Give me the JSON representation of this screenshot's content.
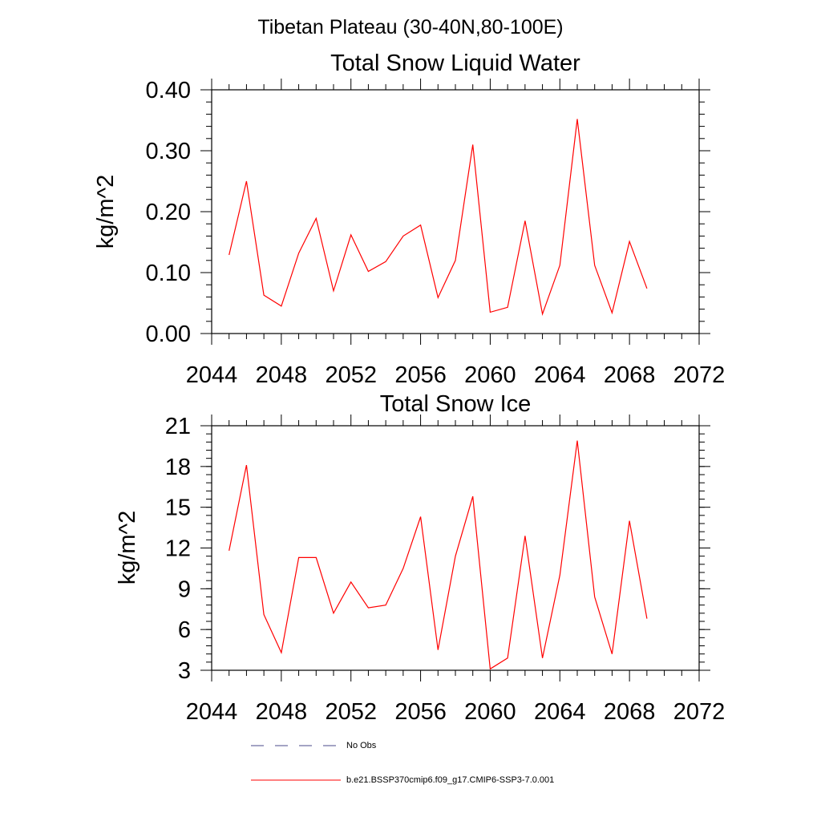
{
  "figure": {
    "suptitle": "Tibetan Plateau (30-40N,80-100E)"
  },
  "chart_data": [
    {
      "type": "line",
      "title": "Total Snow Liquid Water",
      "xlabel": "",
      "ylabel": "kg/m^2",
      "xlim": [
        2044,
        2072
      ],
      "ylim": [
        0.0,
        0.4
      ],
      "x_ticks": [
        2044,
        2048,
        2052,
        2056,
        2060,
        2064,
        2068,
        2072
      ],
      "x_tick_labels": [
        "2044",
        "2048",
        "2052",
        "2056",
        "2060",
        "2064",
        "2068",
        "2072"
      ],
      "y_ticks": [
        0.0,
        0.1,
        0.2,
        0.3,
        0.4
      ],
      "y_tick_labels": [
        "0.00",
        "0.10",
        "0.20",
        "0.30",
        "0.40"
      ],
      "grid": false,
      "x": [
        2045,
        2046,
        2047,
        2048,
        2049,
        2050,
        2051,
        2052,
        2053,
        2054,
        2055,
        2056,
        2057,
        2058,
        2059,
        2060,
        2061,
        2062,
        2063,
        2064,
        2065,
        2066,
        2067,
        2068,
        2069
      ],
      "series": [
        {
          "color": "#ff0000",
          "values": [
            0.129,
            0.25,
            0.063,
            0.045,
            0.132,
            0.189,
            0.07,
            0.162,
            0.102,
            0.118,
            0.16,
            0.178,
            0.059,
            0.12,
            0.31,
            0.035,
            0.043,
            0.185,
            0.032,
            0.112,
            0.352,
            0.112,
            0.034,
            0.151,
            0.074
          ]
        }
      ]
    },
    {
      "type": "line",
      "title": "Total Snow Ice",
      "xlabel": "",
      "ylabel": "kg/m^2",
      "xlim": [
        2044,
        2072
      ],
      "ylim": [
        3,
        21
      ],
      "x_ticks": [
        2044,
        2048,
        2052,
        2056,
        2060,
        2064,
        2068,
        2072
      ],
      "x_tick_labels": [
        "2044",
        "2048",
        "2052",
        "2056",
        "2060",
        "2064",
        "2068",
        "2072"
      ],
      "y_ticks": [
        3,
        6,
        9,
        12,
        15,
        18,
        21
      ],
      "y_tick_labels": [
        "3",
        "6",
        "9",
        "12",
        "15",
        "18",
        "21"
      ],
      "grid": false,
      "x": [
        2045,
        2046,
        2047,
        2048,
        2049,
        2050,
        2051,
        2052,
        2053,
        2054,
        2055,
        2056,
        2057,
        2058,
        2059,
        2060,
        2061,
        2062,
        2063,
        2064,
        2065,
        2066,
        2067,
        2068,
        2069
      ],
      "series": [
        {
          "color": "#ff0000",
          "values": [
            11.8,
            18.1,
            7.1,
            4.3,
            11.3,
            11.3,
            7.2,
            9.5,
            7.6,
            7.8,
            10.5,
            14.3,
            4.5,
            11.4,
            15.8,
            3.1,
            3.9,
            12.9,
            3.9,
            10.0,
            19.9,
            8.4,
            4.2,
            14.0,
            6.8
          ]
        }
      ]
    }
  ],
  "legend": {
    "placement": "bottom",
    "items": [
      {
        "label": "No Obs",
        "color": "#4a4a8a",
        "dashed": true
      },
      {
        "label": "b.e21.BSSP370cmip6.f09_g17.CMIP6-SSP3-7.0.001",
        "color": "#ff0000",
        "dashed": false
      }
    ]
  }
}
